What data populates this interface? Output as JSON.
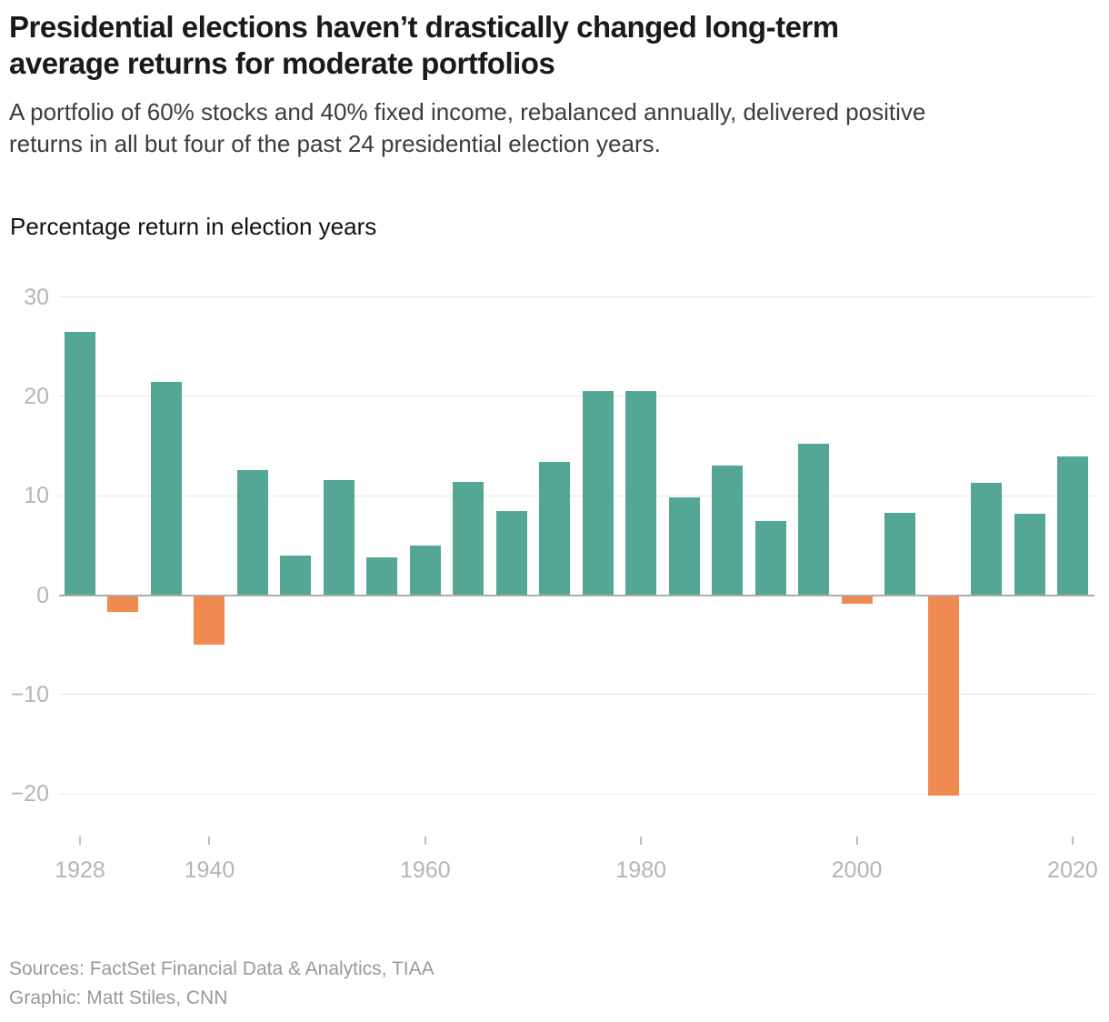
{
  "header": {
    "title_line1": "Presidential elections haven’t drastically changed long-term",
    "title_line2": "average returns for moderate portfolios",
    "subtitle_line1": "A portfolio of 60% stocks and 40% fixed income, rebalanced annually, delivered positive",
    "subtitle_line2": "returns in all but four of the past 24 presidential election years."
  },
  "chart_data": {
    "type": "bar",
    "title": "Percentage return in election years",
    "xlabel": "",
    "ylabel": "",
    "categories": [
      1928,
      1932,
      1936,
      1940,
      1944,
      1948,
      1952,
      1956,
      1960,
      1964,
      1968,
      1972,
      1976,
      1980,
      1984,
      1988,
      1992,
      1996,
      2000,
      2004,
      2008,
      2012,
      2016,
      2020
    ],
    "values": [
      26.5,
      -1.6,
      21.5,
      -4.9,
      12.6,
      4.0,
      11.6,
      3.8,
      5.0,
      11.4,
      8.5,
      13.4,
      20.5,
      20.5,
      9.8,
      13.0,
      7.5,
      15.2,
      -0.8,
      8.3,
      -20.1,
      11.3,
      8.2,
      14.0
    ],
    "yticks": [
      {
        "value": 30,
        "label": "30"
      },
      {
        "value": 20,
        "label": "20"
      },
      {
        "value": 10,
        "label": "10"
      },
      {
        "value": 0,
        "label": "0"
      },
      {
        "value": -10,
        "label": "−10"
      },
      {
        "value": -20,
        "label": "−20"
      }
    ],
    "xticks": [
      "1928",
      "1940",
      "1960",
      "1980",
      "2000",
      "2020"
    ],
    "ylim": [
      -22,
      31
    ],
    "grid": "horizontal",
    "legend": "none",
    "positive_color": "#54a695",
    "negative_color": "#f08a50",
    "axis_text_color": "#b5b5b5",
    "gridline_color": "#e8e8e8",
    "zero_line_color": "#adadad"
  },
  "footer": {
    "sources": "Sources: FactSet Financial Data & Analytics, TIAA",
    "credit": "Graphic: Matt Stiles, CNN"
  }
}
